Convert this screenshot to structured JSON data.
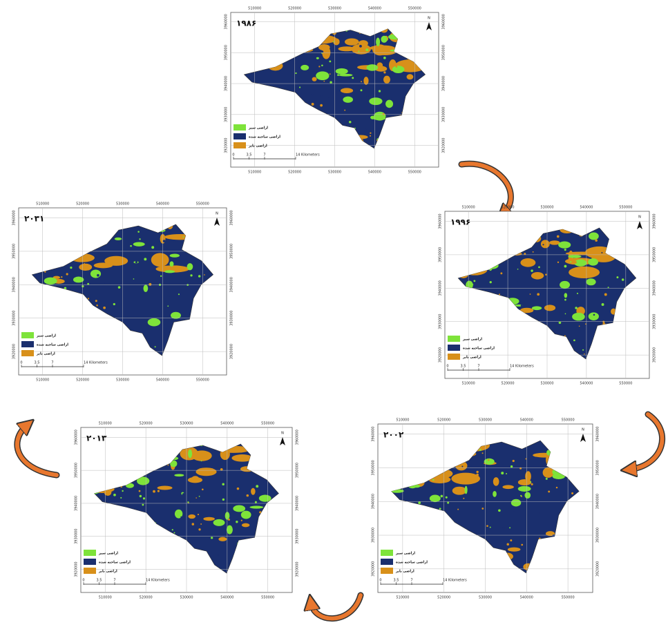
{
  "maps": [
    {
      "year": "۱۹۸۶"
    },
    {
      "year": "۱۹۹۶"
    },
    {
      "year": "۲۰۰۲"
    },
    {
      "year": "۲۰۱۳"
    },
    {
      "year": "۲۰۳۱"
    }
  ],
  "legend": [
    "اراضی سبز",
    "اراضی ساخته شده",
    "اراضی بایر"
  ],
  "x_ticks": [
    "510000",
    "520000",
    "530000",
    "540000",
    "550000"
  ],
  "y_ticks": [
    "3960000",
    "3950000",
    "3940000",
    "3930000",
    "3920000"
  ],
  "scale_labels": [
    "0",
    "3.5",
    "7",
    "14 Kilometers"
  ],
  "north": "N"
}
